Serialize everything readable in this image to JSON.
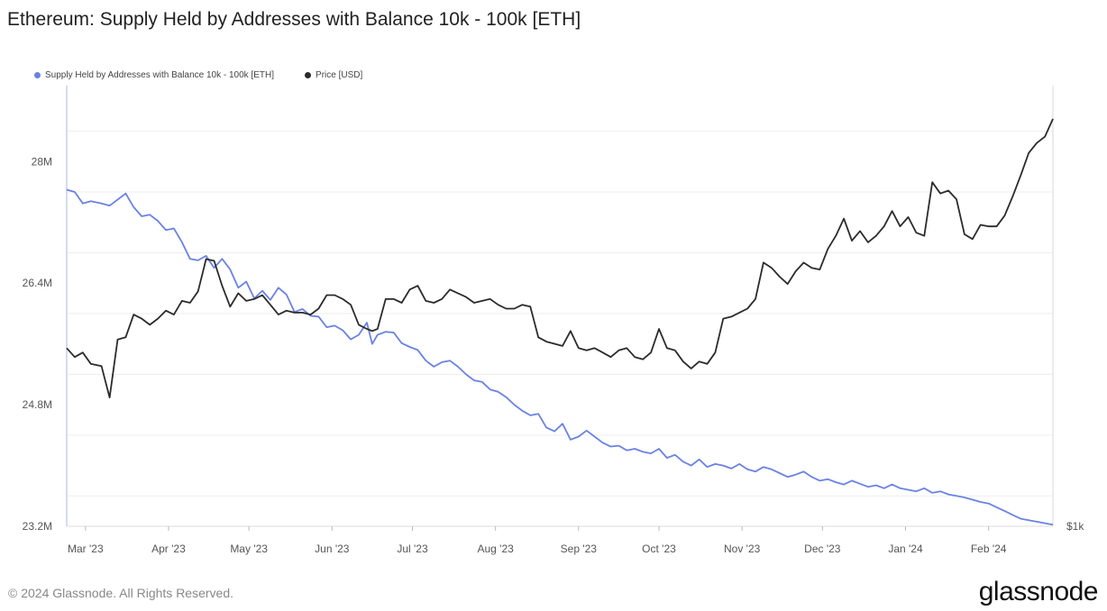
{
  "title": "Ethereum: Supply Held by Addresses with Balance 10k - 100k [ETH]",
  "legend": [
    {
      "label": "Supply Held by Addresses with Balance 10k - 100k [ETH]",
      "color": "#6a82e3"
    },
    {
      "label": "Price [USD]",
      "color": "#2b2b2b"
    }
  ],
  "footer": {
    "copyright": "© 2024 Glassnode. All Rights Reserved.",
    "brand": "glassnode"
  },
  "chart_data": {
    "type": "line",
    "title": "Ethereum: Supply Held by Addresses with Balance 10k - 100k [ETH]",
    "x_tick_labels": [
      "Mar '23",
      "Apr '23",
      "May '23",
      "Jun '23",
      "Jul '23",
      "Aug '23",
      "Sep '23",
      "Oct '23",
      "Nov '23",
      "Dec '23",
      "Jan '24",
      "Feb '24"
    ],
    "y_left_tick_labels": [
      "28M",
      "26.4M",
      "24.8M",
      "23.2M"
    ],
    "y_left_ticks": [
      28.0,
      26.4,
      24.8,
      23.2
    ],
    "y_right_tick_labels": [
      "$1k"
    ],
    "ylim_left": [
      23.2,
      29.0
    ],
    "right_axis_scale": "log",
    "grid": "horizontal",
    "legend_position": "top-left",
    "series": [
      {
        "name": "Supply Held by Addresses with Balance 10k - 100k [ETH]",
        "axis": "left",
        "color": "#6a82e3",
        "unit": "M ETH",
        "points": [
          [
            "2023-02-22",
            27.63
          ],
          [
            "2023-02-25",
            27.6
          ],
          [
            "2023-02-28",
            27.45
          ],
          [
            "2023-03-03",
            27.48
          ],
          [
            "2023-03-07",
            27.45
          ],
          [
            "2023-03-10",
            27.42
          ],
          [
            "2023-03-13",
            27.5
          ],
          [
            "2023-03-16",
            27.58
          ],
          [
            "2023-03-19",
            27.4
          ],
          [
            "2023-03-22",
            27.28
          ],
          [
            "2023-03-25",
            27.3
          ],
          [
            "2023-03-28",
            27.22
          ],
          [
            "2023-03-31",
            27.1
          ],
          [
            "2023-04-03",
            27.12
          ],
          [
            "2023-04-06",
            26.94
          ],
          [
            "2023-04-09",
            26.72
          ],
          [
            "2023-04-12",
            26.7
          ],
          [
            "2023-04-15",
            26.76
          ],
          [
            "2023-04-18",
            26.6
          ],
          [
            "2023-04-21",
            26.72
          ],
          [
            "2023-04-24",
            26.58
          ],
          [
            "2023-04-27",
            26.34
          ],
          [
            "2023-04-30",
            26.42
          ],
          [
            "2023-05-03",
            26.2
          ],
          [
            "2023-05-06",
            26.3
          ],
          [
            "2023-05-09",
            26.18
          ],
          [
            "2023-05-12",
            26.34
          ],
          [
            "2023-05-15",
            26.25
          ],
          [
            "2023-05-18",
            26.02
          ],
          [
            "2023-05-21",
            26.06
          ],
          [
            "2023-05-24",
            25.97
          ],
          [
            "2023-05-27",
            25.96
          ],
          [
            "2023-05-30",
            25.82
          ],
          [
            "2023-06-02",
            25.84
          ],
          [
            "2023-06-05",
            25.78
          ],
          [
            "2023-06-08",
            25.66
          ],
          [
            "2023-06-11",
            25.72
          ],
          [
            "2023-06-14",
            25.88
          ],
          [
            "2023-06-16",
            25.6
          ],
          [
            "2023-06-18",
            25.72
          ],
          [
            "2023-06-21",
            25.76
          ],
          [
            "2023-06-24",
            25.75
          ],
          [
            "2023-06-27",
            25.61
          ],
          [
            "2023-06-30",
            25.56
          ],
          [
            "2023-07-03",
            25.52
          ],
          [
            "2023-07-06",
            25.38
          ],
          [
            "2023-07-09",
            25.3
          ],
          [
            "2023-07-12",
            25.36
          ],
          [
            "2023-07-15",
            25.38
          ],
          [
            "2023-07-18",
            25.3
          ],
          [
            "2023-07-21",
            25.2
          ],
          [
            "2023-07-24",
            25.12
          ],
          [
            "2023-07-27",
            25.1
          ],
          [
            "2023-07-30",
            25.0
          ],
          [
            "2023-08-02",
            24.97
          ],
          [
            "2023-08-05",
            24.9
          ],
          [
            "2023-08-08",
            24.8
          ],
          [
            "2023-08-11",
            24.72
          ],
          [
            "2023-08-14",
            24.66
          ],
          [
            "2023-08-17",
            24.68
          ],
          [
            "2023-08-20",
            24.5
          ],
          [
            "2023-08-23",
            24.45
          ],
          [
            "2023-08-26",
            24.55
          ],
          [
            "2023-08-29",
            24.34
          ],
          [
            "2023-09-01",
            24.38
          ],
          [
            "2023-09-04",
            24.46
          ],
          [
            "2023-09-07",
            24.38
          ],
          [
            "2023-09-10",
            24.3
          ],
          [
            "2023-09-13",
            24.25
          ],
          [
            "2023-09-16",
            24.26
          ],
          [
            "2023-09-19",
            24.2
          ],
          [
            "2023-09-22",
            24.22
          ],
          [
            "2023-09-25",
            24.18
          ],
          [
            "2023-09-28",
            24.16
          ],
          [
            "2023-10-01",
            24.22
          ],
          [
            "2023-10-04",
            24.1
          ],
          [
            "2023-10-07",
            24.14
          ],
          [
            "2023-10-10",
            24.05
          ],
          [
            "2023-10-13",
            24.0
          ],
          [
            "2023-10-16",
            24.08
          ],
          [
            "2023-10-19",
            23.98
          ],
          [
            "2023-10-22",
            24.02
          ],
          [
            "2023-10-25",
            24.0
          ],
          [
            "2023-10-28",
            23.96
          ],
          [
            "2023-10-31",
            24.02
          ],
          [
            "2023-11-03",
            23.95
          ],
          [
            "2023-11-06",
            23.92
          ],
          [
            "2023-11-09",
            23.98
          ],
          [
            "2023-11-12",
            23.95
          ],
          [
            "2023-11-15",
            23.9
          ],
          [
            "2023-11-18",
            23.85
          ],
          [
            "2023-11-21",
            23.88
          ],
          [
            "2023-11-24",
            23.92
          ],
          [
            "2023-11-27",
            23.85
          ],
          [
            "2023-11-30",
            23.8
          ],
          [
            "2023-12-03",
            23.82
          ],
          [
            "2023-12-06",
            23.78
          ],
          [
            "2023-12-09",
            23.75
          ],
          [
            "2023-12-12",
            23.8
          ],
          [
            "2023-12-15",
            23.76
          ],
          [
            "2023-12-18",
            23.72
          ],
          [
            "2023-12-21",
            23.74
          ],
          [
            "2023-12-24",
            23.7
          ],
          [
            "2023-12-27",
            23.75
          ],
          [
            "2023-12-30",
            23.7
          ],
          [
            "2024-01-02",
            23.68
          ],
          [
            "2024-01-05",
            23.66
          ],
          [
            "2024-01-08",
            23.7
          ],
          [
            "2024-01-11",
            23.64
          ],
          [
            "2024-01-14",
            23.66
          ],
          [
            "2024-01-17",
            23.62
          ],
          [
            "2024-01-20",
            23.6
          ],
          [
            "2024-01-23",
            23.58
          ],
          [
            "2024-01-26",
            23.55
          ],
          [
            "2024-01-29",
            23.52
          ],
          [
            "2024-02-01",
            23.5
          ],
          [
            "2024-02-04",
            23.45
          ],
          [
            "2024-02-07",
            23.4
          ],
          [
            "2024-02-10",
            23.35
          ],
          [
            "2024-02-13",
            23.3
          ],
          [
            "2024-02-16",
            23.28
          ],
          [
            "2024-02-19",
            23.26
          ],
          [
            "2024-02-22",
            23.24
          ],
          [
            "2024-02-25",
            23.22
          ]
        ]
      },
      {
        "name": "Price [USD]",
        "axis": "right",
        "color": "#2b2b2b",
        "unit": "USD",
        "points": [
          [
            "2023-02-22",
            1640
          ],
          [
            "2023-02-25",
            1600
          ],
          [
            "2023-02-28",
            1620
          ],
          [
            "2023-03-03",
            1570
          ],
          [
            "2023-03-07",
            1560
          ],
          [
            "2023-03-10",
            1430
          ],
          [
            "2023-03-13",
            1680
          ],
          [
            "2023-03-16",
            1690
          ],
          [
            "2023-03-19",
            1800
          ],
          [
            "2023-03-22",
            1780
          ],
          [
            "2023-03-25",
            1750
          ],
          [
            "2023-03-28",
            1780
          ],
          [
            "2023-03-31",
            1820
          ],
          [
            "2023-04-03",
            1800
          ],
          [
            "2023-04-06",
            1870
          ],
          [
            "2023-04-09",
            1860
          ],
          [
            "2023-04-12",
            1920
          ],
          [
            "2023-04-15",
            2100
          ],
          [
            "2023-04-18",
            2090
          ],
          [
            "2023-04-21",
            1950
          ],
          [
            "2023-04-24",
            1840
          ],
          [
            "2023-04-27",
            1910
          ],
          [
            "2023-04-30",
            1870
          ],
          [
            "2023-05-03",
            1880
          ],
          [
            "2023-05-06",
            1900
          ],
          [
            "2023-05-09",
            1850
          ],
          [
            "2023-05-12",
            1800
          ],
          [
            "2023-05-15",
            1820
          ],
          [
            "2023-05-18",
            1810
          ],
          [
            "2023-05-21",
            1810
          ],
          [
            "2023-05-24",
            1800
          ],
          [
            "2023-05-27",
            1830
          ],
          [
            "2023-05-30",
            1900
          ],
          [
            "2023-06-02",
            1900
          ],
          [
            "2023-06-05",
            1880
          ],
          [
            "2023-06-08",
            1850
          ],
          [
            "2023-06-11",
            1750
          ],
          [
            "2023-06-14",
            1730
          ],
          [
            "2023-06-16",
            1720
          ],
          [
            "2023-06-18",
            1730
          ],
          [
            "2023-06-21",
            1880
          ],
          [
            "2023-06-24",
            1880
          ],
          [
            "2023-06-27",
            1860
          ],
          [
            "2023-06-30",
            1930
          ],
          [
            "2023-07-03",
            1950
          ],
          [
            "2023-07-06",
            1870
          ],
          [
            "2023-07-09",
            1860
          ],
          [
            "2023-07-12",
            1880
          ],
          [
            "2023-07-15",
            1930
          ],
          [
            "2023-07-18",
            1910
          ],
          [
            "2023-07-21",
            1890
          ],
          [
            "2023-07-24",
            1860
          ],
          [
            "2023-07-27",
            1870
          ],
          [
            "2023-07-30",
            1880
          ],
          [
            "2023-08-02",
            1850
          ],
          [
            "2023-08-05",
            1830
          ],
          [
            "2023-08-08",
            1830
          ],
          [
            "2023-08-11",
            1850
          ],
          [
            "2023-08-14",
            1840
          ],
          [
            "2023-08-17",
            1690
          ],
          [
            "2023-08-20",
            1670
          ],
          [
            "2023-08-23",
            1660
          ],
          [
            "2023-08-26",
            1650
          ],
          [
            "2023-08-29",
            1720
          ],
          [
            "2023-09-01",
            1640
          ],
          [
            "2023-09-04",
            1630
          ],
          [
            "2023-09-07",
            1640
          ],
          [
            "2023-09-10",
            1620
          ],
          [
            "2023-09-13",
            1600
          ],
          [
            "2023-09-16",
            1630
          ],
          [
            "2023-09-19",
            1640
          ],
          [
            "2023-09-22",
            1600
          ],
          [
            "2023-09-25",
            1590
          ],
          [
            "2023-09-28",
            1620
          ],
          [
            "2023-10-01",
            1730
          ],
          [
            "2023-10-04",
            1640
          ],
          [
            "2023-10-07",
            1630
          ],
          [
            "2023-10-10",
            1580
          ],
          [
            "2023-10-13",
            1550
          ],
          [
            "2023-10-16",
            1580
          ],
          [
            "2023-10-19",
            1570
          ],
          [
            "2023-10-22",
            1620
          ],
          [
            "2023-10-25",
            1780
          ],
          [
            "2023-10-28",
            1790
          ],
          [
            "2023-10-31",
            1810
          ],
          [
            "2023-11-03",
            1830
          ],
          [
            "2023-11-06",
            1880
          ],
          [
            "2023-11-09",
            2080
          ],
          [
            "2023-11-12",
            2050
          ],
          [
            "2023-11-15",
            2000
          ],
          [
            "2023-11-18",
            1960
          ],
          [
            "2023-11-21",
            2030
          ],
          [
            "2023-11-24",
            2080
          ],
          [
            "2023-11-27",
            2050
          ],
          [
            "2023-11-30",
            2040
          ],
          [
            "2023-12-03",
            2160
          ],
          [
            "2023-12-06",
            2240
          ],
          [
            "2023-12-09",
            2350
          ],
          [
            "2023-12-12",
            2210
          ],
          [
            "2023-12-15",
            2270
          ],
          [
            "2023-12-18",
            2200
          ],
          [
            "2023-12-21",
            2240
          ],
          [
            "2023-12-24",
            2300
          ],
          [
            "2023-12-27",
            2400
          ],
          [
            "2023-12-30",
            2300
          ],
          [
            "2024-01-02",
            2360
          ],
          [
            "2024-01-05",
            2260
          ],
          [
            "2024-01-08",
            2240
          ],
          [
            "2024-01-11",
            2600
          ],
          [
            "2024-01-14",
            2520
          ],
          [
            "2024-01-17",
            2540
          ],
          [
            "2024-01-20",
            2480
          ],
          [
            "2024-01-23",
            2250
          ],
          [
            "2024-01-26",
            2220
          ],
          [
            "2024-01-29",
            2310
          ],
          [
            "2024-02-01",
            2300
          ],
          [
            "2024-02-04",
            2300
          ],
          [
            "2024-02-07",
            2370
          ],
          [
            "2024-02-10",
            2500
          ],
          [
            "2024-02-13",
            2650
          ],
          [
            "2024-02-16",
            2820
          ],
          [
            "2024-02-19",
            2900
          ],
          [
            "2024-02-22",
            2950
          ],
          [
            "2024-02-25",
            3100
          ]
        ]
      }
    ]
  }
}
